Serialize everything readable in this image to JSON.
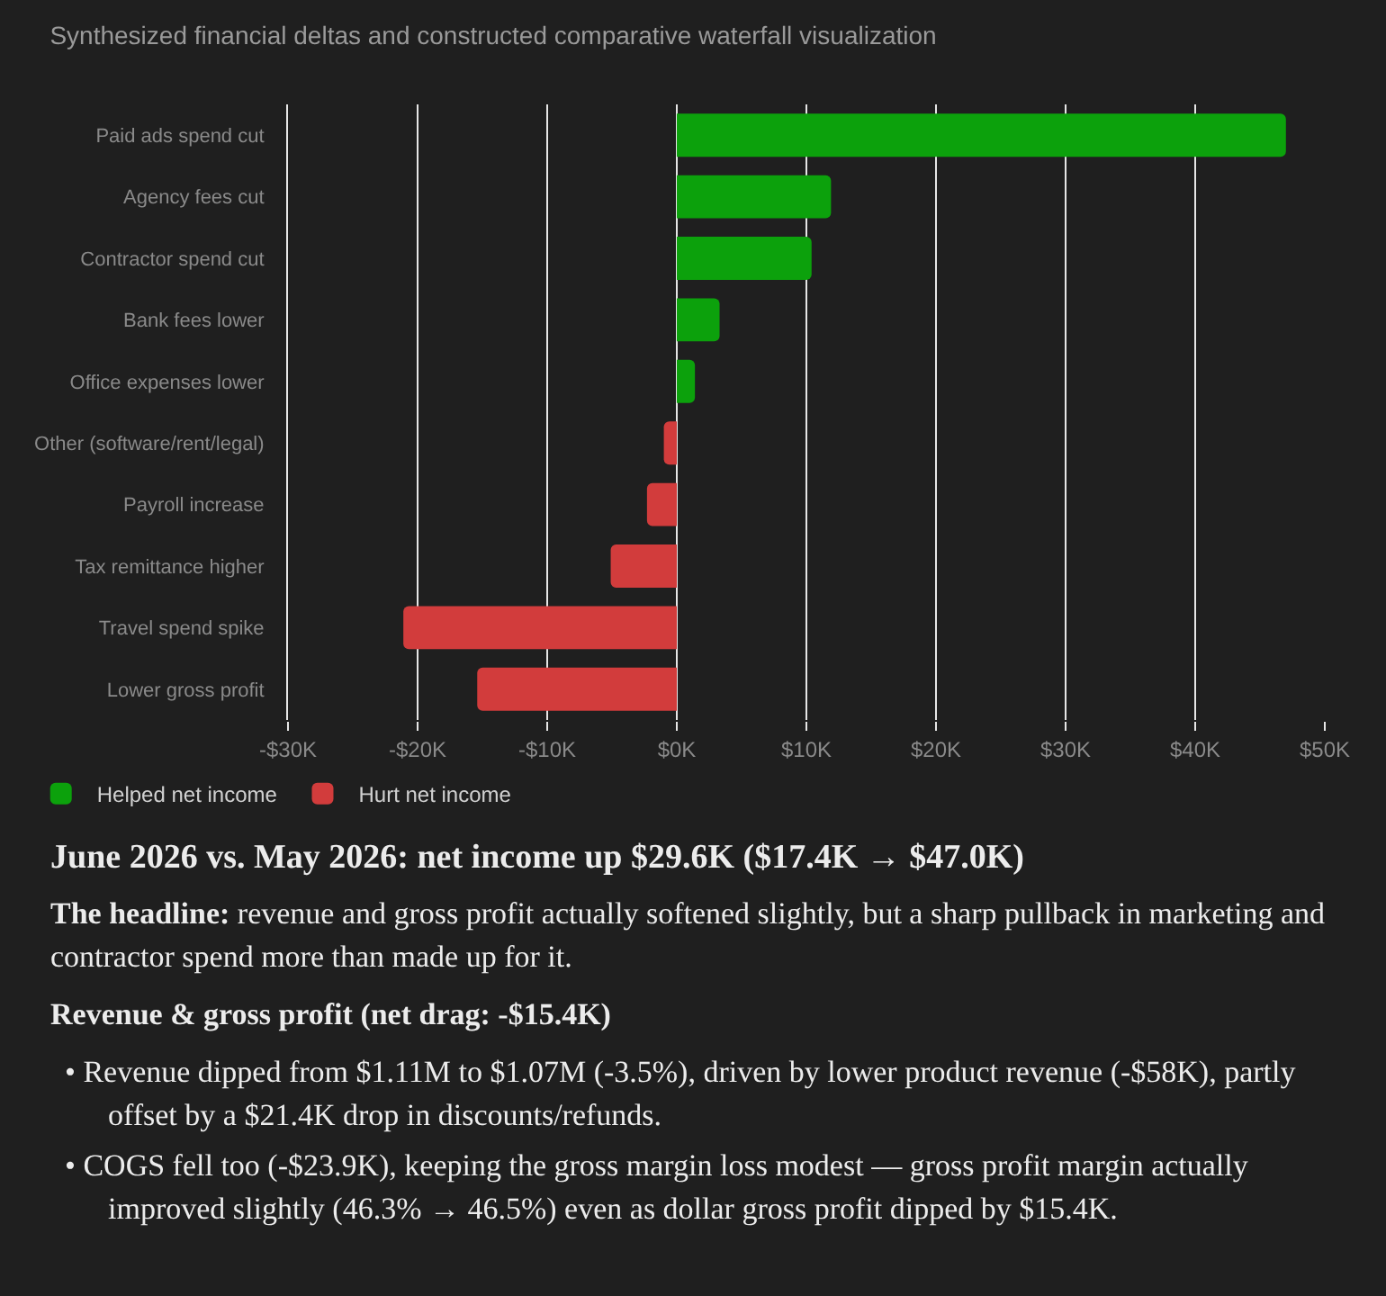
{
  "chart_data": {
    "type": "bar",
    "orientation": "horizontal",
    "title": "Synthesized financial deltas and constructed comparative waterfall visualization",
    "categories": [
      "Paid ads spend cut",
      "Agency fees cut",
      "Contractor spend cut",
      "Bank fees lower",
      "Office expenses lower",
      "Other (software/rent/legal)",
      "Payroll increase",
      "Tax remittance higher",
      "Travel spend spike",
      "Lower gross profit"
    ],
    "series": [
      {
        "name": "Helped net income",
        "color": "#0ca10c",
        "values": [
          47.0,
          11.9,
          10.4,
          3.3,
          1.4,
          null,
          null,
          null,
          null,
          null
        ]
      },
      {
        "name": "Hurt net income",
        "color": "#d23c3c",
        "values": [
          null,
          null,
          null,
          null,
          null,
          -1.0,
          -2.3,
          -5.1,
          -21.1,
          -15.4
        ]
      }
    ],
    "xlim": [
      -30,
      50
    ],
    "xticks": [
      {
        "value": -30,
        "label": "-$30K"
      },
      {
        "value": -20,
        "label": "-$20K"
      },
      {
        "value": -10,
        "label": "-$10K"
      },
      {
        "value": 0,
        "label": "$0K"
      },
      {
        "value": 10,
        "label": "$10K"
      },
      {
        "value": 20,
        "label": "$20K"
      },
      {
        "value": 30,
        "label": "$30K"
      },
      {
        "value": 40,
        "label": "$40K"
      },
      {
        "value": 50,
        "label": "$50K"
      }
    ],
    "grid": "x",
    "legend": "bottom left",
    "annotations": [
      "June 2026 vs. May 2026: net income up $29.6K ($17.4K → $47.0K)",
      "The headline: revenue and gross profit actually softened slightly, but a sharp pullback in marketing and contractor spend more than made up for it.",
      "Revenue & gross profit (net drag: -$15.4K)",
      "• Revenue dipped from $1.11M to $1.07M (-3.5%), driven by lower product revenue (-$58K), partly offset by a $21.4K drop in discounts/refunds.",
      "• COGS fell too (-$23.9K), keeping the gross margin loss modest — gross profit margin actually improved slightly (46.3% → 46.5%) even as dollar gross profit dipped by $15.4K."
    ]
  }
}
